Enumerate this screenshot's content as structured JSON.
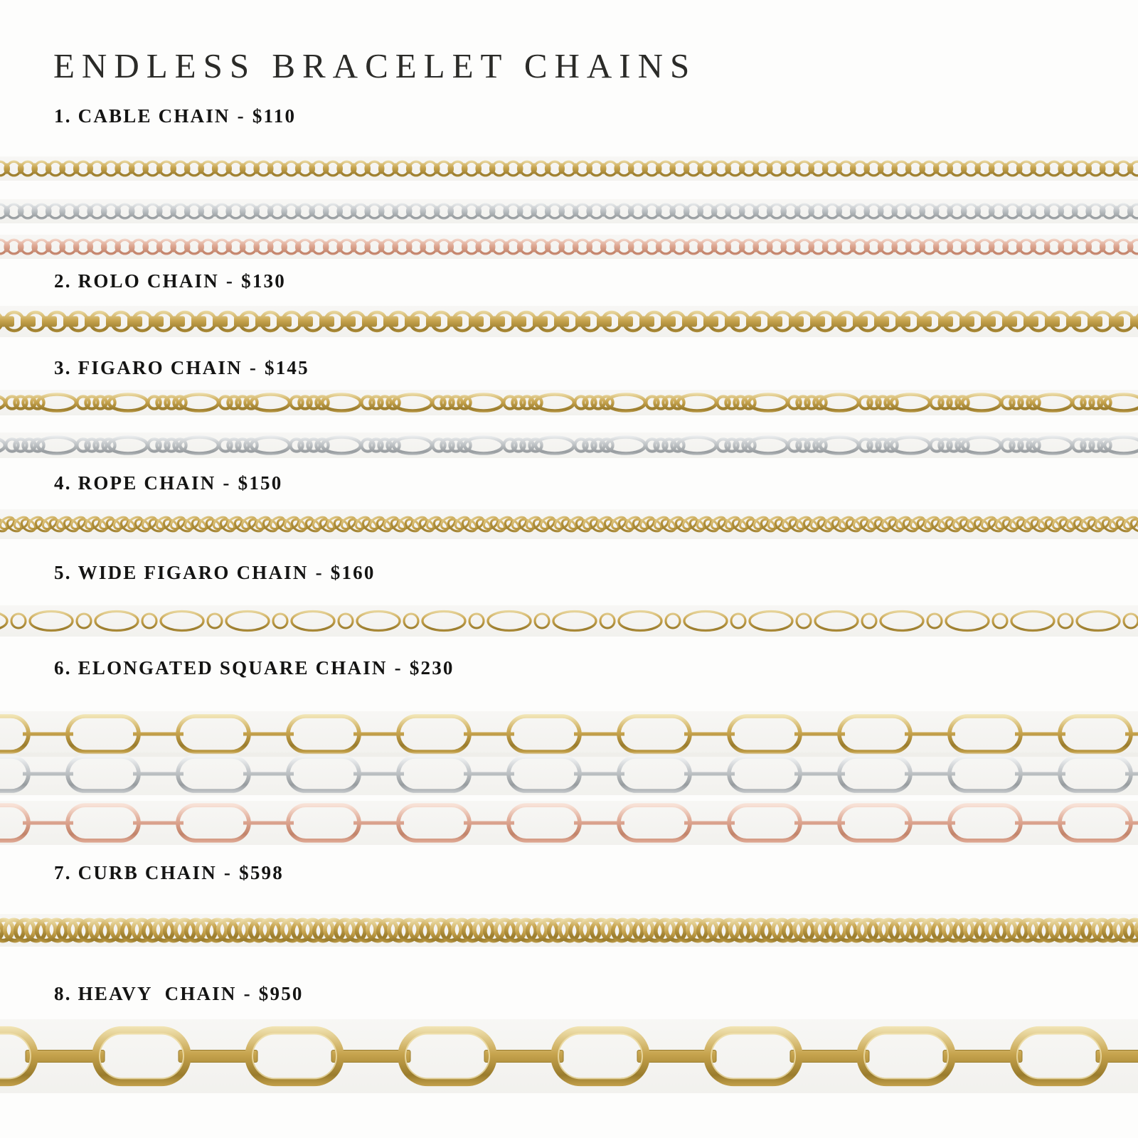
{
  "page": {
    "title": "ENDLESS BRACELET CHAINS"
  },
  "label_separator": "-",
  "metals": {
    "yellow_gold": {
      "name": "yellow-gold",
      "dark": "#9a7c2d",
      "main": "#c7a44e",
      "light": "#f1e4b4"
    },
    "white_gold": {
      "name": "white-gold",
      "dark": "#979c9f",
      "main": "#bfc3c6",
      "light": "#f1f3f4"
    },
    "rose_gold": {
      "name": "rose-gold",
      "dark": "#c2836a",
      "main": "#dda691",
      "light": "#f8e1d6"
    }
  },
  "sections": [
    {
      "number": "1.",
      "name": "CABLE CHAIN",
      "price": "$110",
      "style": "cable",
      "variants": [
        "yellow_gold",
        "white_gold",
        "rose_gold"
      ]
    },
    {
      "number": "2.",
      "name": "ROLO CHAIN",
      "price": "$130",
      "style": "rolo",
      "variants": [
        "yellow_gold"
      ]
    },
    {
      "number": "3.",
      "name": "FIGARO CHAIN",
      "price": "$145",
      "style": "figaro",
      "variants": [
        "yellow_gold",
        "white_gold"
      ]
    },
    {
      "number": "4.",
      "name": "ROPE CHAIN",
      "price": "$150",
      "style": "rope",
      "variants": [
        "yellow_gold"
      ]
    },
    {
      "number": "5.",
      "name": "WIDE FIGARO CHAIN",
      "price": "$160",
      "style": "wide-figaro",
      "variants": [
        "yellow_gold"
      ]
    },
    {
      "number": "6.",
      "name": "ELONGATED SQUARE CHAIN",
      "price": "$230",
      "style": "paperclip",
      "variants": [
        "yellow_gold",
        "white_gold",
        "rose_gold"
      ]
    },
    {
      "number": "7.",
      "name": "CURB CHAIN",
      "price": "$598",
      "style": "curb",
      "variants": [
        "yellow_gold"
      ]
    },
    {
      "number": "8.",
      "name": "HEAVY  CHAIN",
      "price": "$950",
      "style": "heavy",
      "variants": [
        "yellow_gold"
      ]
    }
  ]
}
